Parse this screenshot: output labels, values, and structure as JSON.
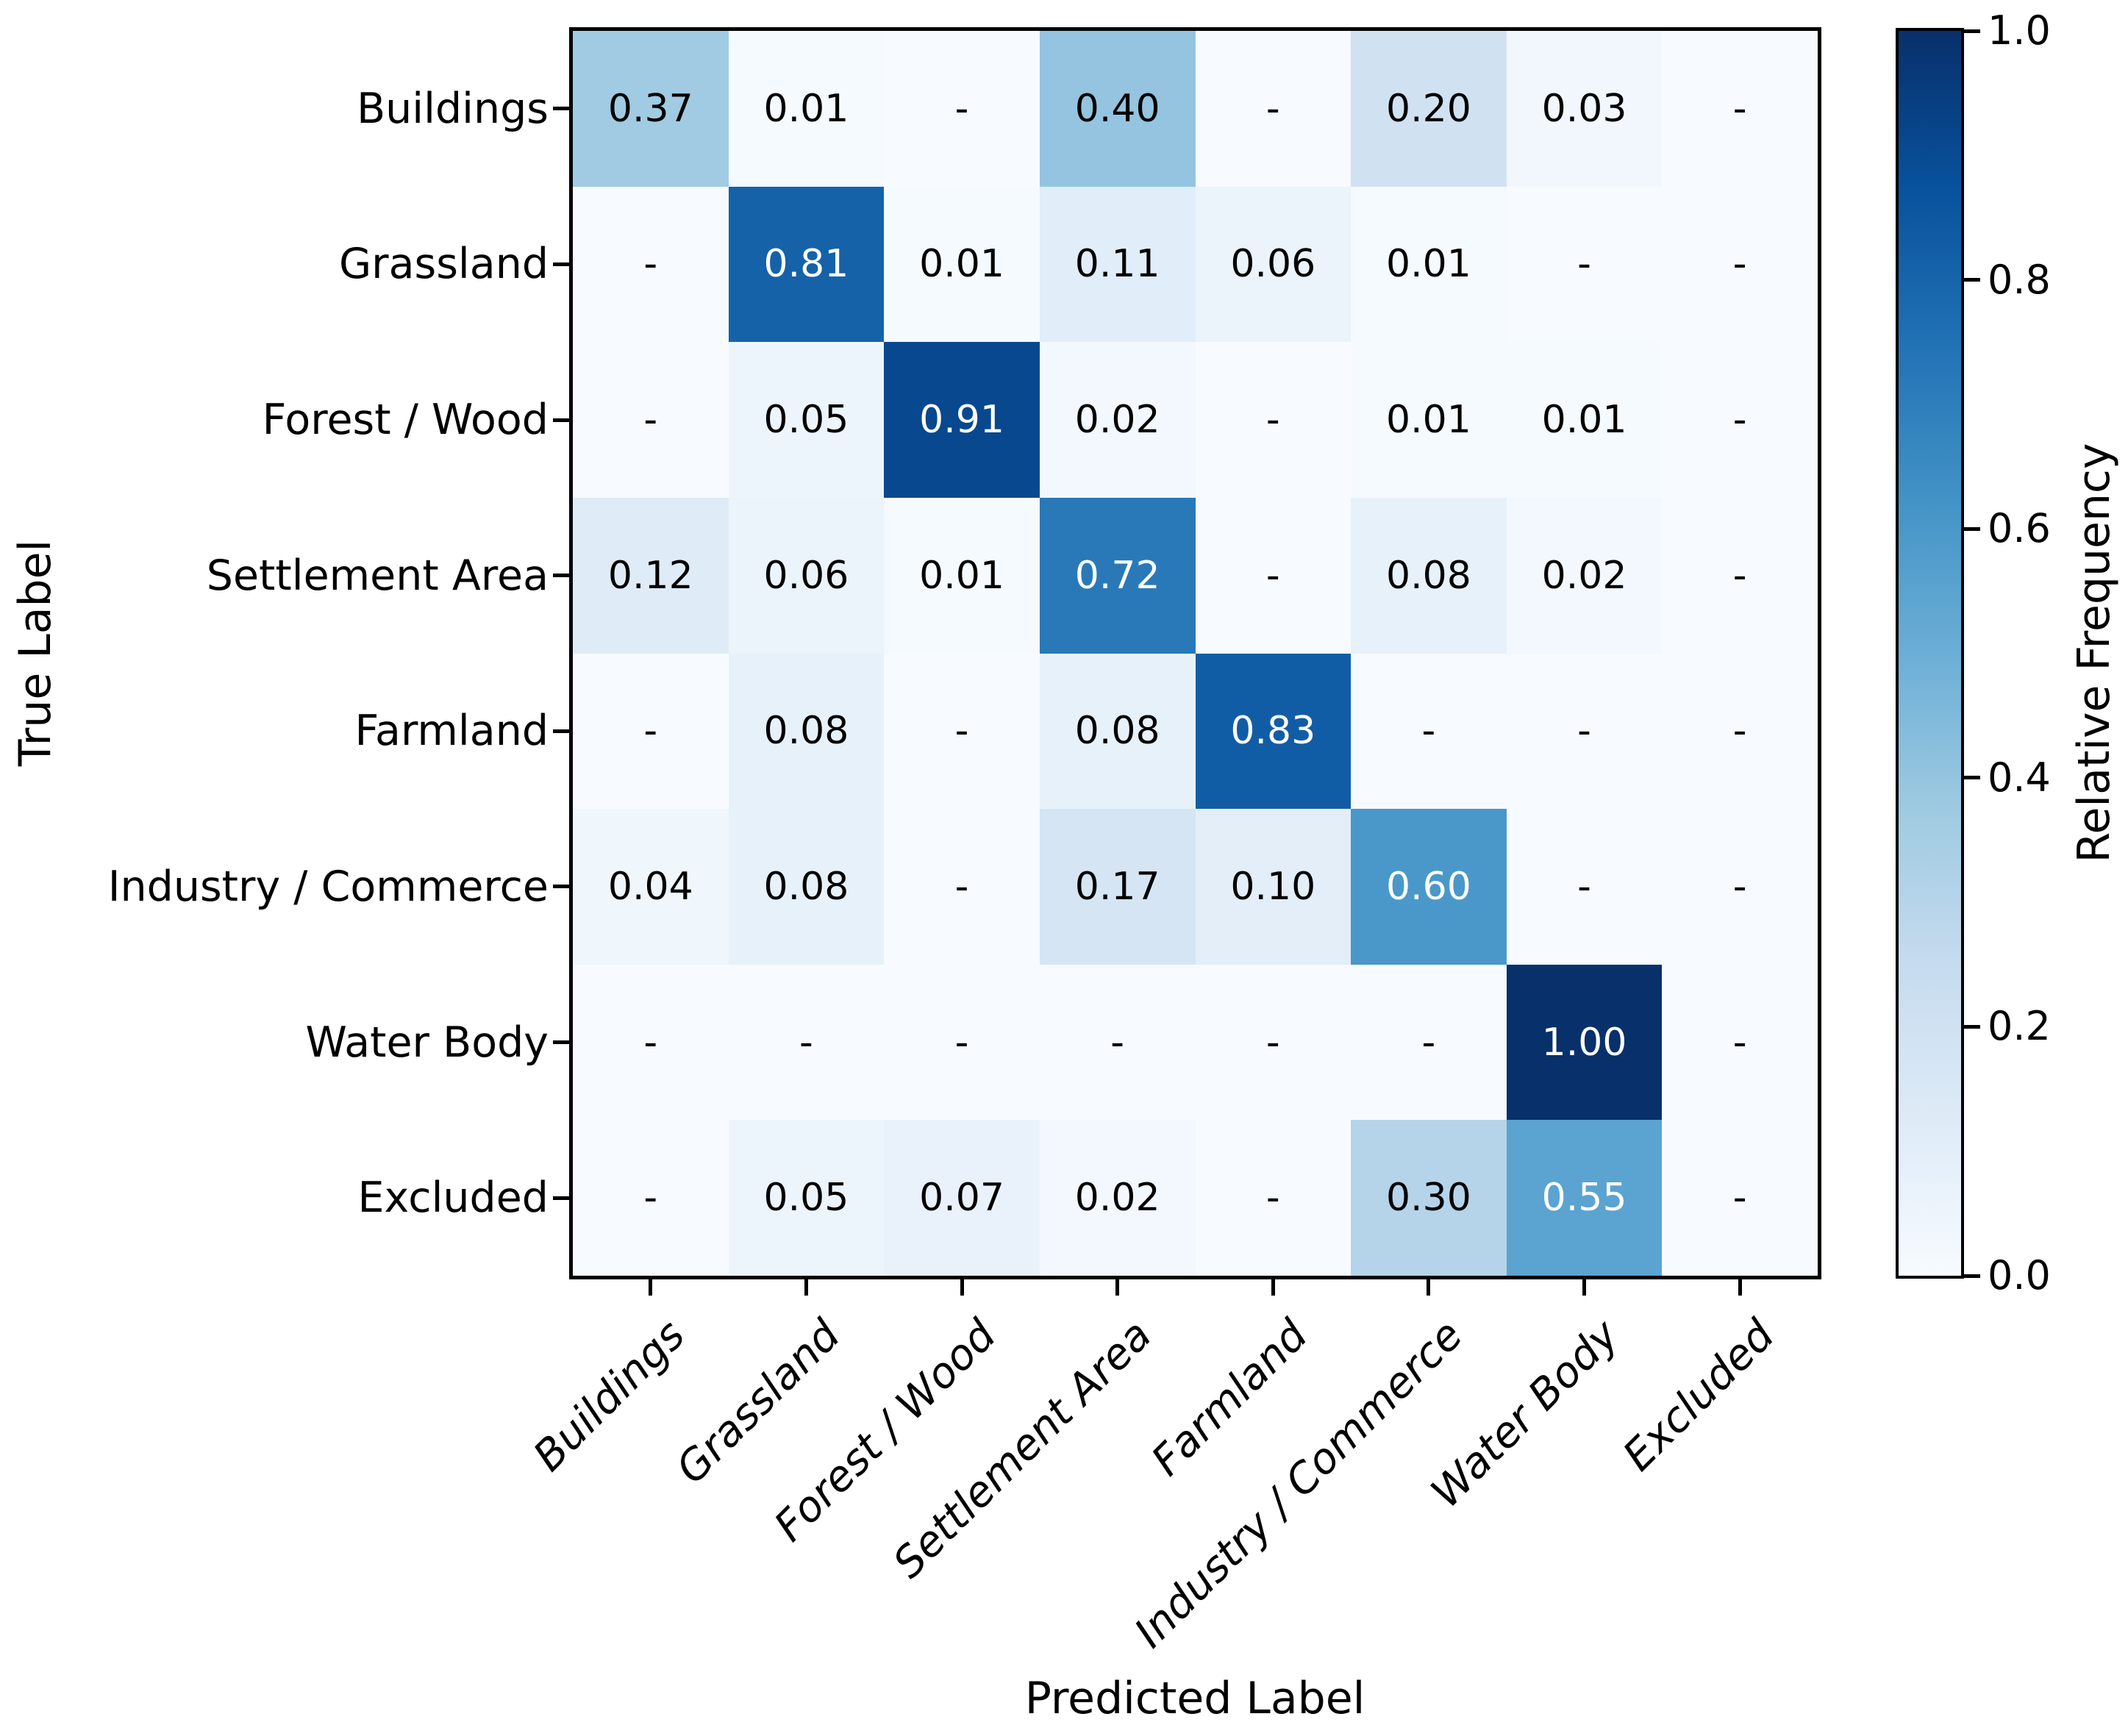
{
  "chart_data": {
    "type": "heatmap",
    "title": "",
    "xlabel": "Predicted Label",
    "ylabel": "True Label",
    "categories": [
      "Buildings",
      "Grassland",
      "Forest / Wood",
      "Settlement Area",
      "Farmland",
      "Industry / Commerce",
      "Water Body",
      "Excluded"
    ],
    "rows": [
      {
        "label": "Buildings",
        "values": [
          0.37,
          0.01,
          null,
          0.4,
          null,
          0.2,
          0.03,
          null
        ]
      },
      {
        "label": "Grassland",
        "values": [
          null,
          0.81,
          0.01,
          0.11,
          0.06,
          0.01,
          null,
          null
        ]
      },
      {
        "label": "Forest / Wood",
        "values": [
          null,
          0.05,
          0.91,
          0.02,
          null,
          0.01,
          0.01,
          null
        ]
      },
      {
        "label": "Settlement Area",
        "values": [
          0.12,
          0.06,
          0.01,
          0.72,
          null,
          0.08,
          0.02,
          null
        ]
      },
      {
        "label": "Farmland",
        "values": [
          null,
          0.08,
          null,
          0.08,
          0.83,
          null,
          null,
          null
        ]
      },
      {
        "label": "Industry / Commerce",
        "values": [
          0.04,
          0.08,
          null,
          0.17,
          0.1,
          0.6,
          null,
          null
        ]
      },
      {
        "label": "Water Body",
        "values": [
          null,
          null,
          null,
          null,
          null,
          null,
          1.0,
          null
        ]
      },
      {
        "label": "Excluded",
        "values": [
          null,
          0.05,
          0.07,
          0.02,
          null,
          0.3,
          0.55,
          null
        ]
      }
    ],
    "missing_marker": "-",
    "value_range": [
      0,
      1
    ],
    "grid": false,
    "colorbar": {
      "label": "Relative Frequency",
      "ticks": [
        0.0,
        0.2,
        0.4,
        0.6,
        0.8,
        1.0
      ],
      "position": "right"
    },
    "colormap": {
      "name": "Blues",
      "anchors": [
        "#f7fbff",
        "#deebf7",
        "#c6dbef",
        "#9ecae1",
        "#6baed6",
        "#4292c6",
        "#2171b5",
        "#08519c",
        "#08306b"
      ]
    },
    "text_colors": {
      "dark_cell_text": "#ffffff",
      "light_cell_text": "#000000",
      "white_text_threshold": 0.5
    }
  }
}
